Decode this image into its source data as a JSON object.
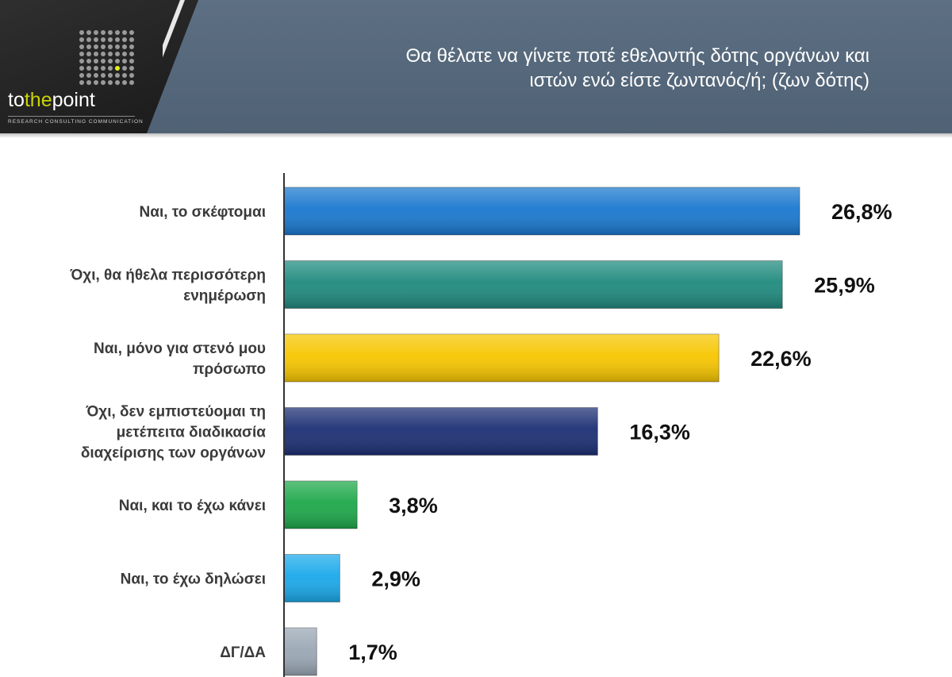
{
  "header": {
    "title_line1": "Θα θέλατε να γίνετε ποτέ εθελοντής δότης οργάνων και",
    "title_line2": "ιστών ενώ είστε ζωντανός/ή; (ζων δότης)",
    "logo": {
      "text_to": "to",
      "text_the": "the",
      "text_point": "point",
      "tagline": "RESEARCH  CONSULTING  COMMUNICATION"
    },
    "band_color": "#56687b"
  },
  "chart_data": {
    "type": "bar",
    "orientation": "horizontal",
    "categories": [
      [
        "Ναι, το σκέφτομαι"
      ],
      [
        "Όχι, θα ήθελα περισσότερη",
        "ενημέρωση"
      ],
      [
        "Ναι, μόνο για στενό μου",
        "πρόσωπο"
      ],
      [
        "Όχι, δεν εμπιστεύομαι τη",
        "μετέπειτα διαδικασία",
        "διαχείρισης των οργάνων"
      ],
      [
        "Ναι, και το έχω κάνει"
      ],
      [
        "Ναι, το έχω δηλώσει"
      ],
      [
        "ΔΓ/ΔΑ"
      ]
    ],
    "values": [
      26.8,
      25.9,
      22.6,
      16.3,
      3.8,
      2.9,
      1.7
    ],
    "value_labels": [
      "26,8%",
      "25,9%",
      "22,6%",
      "16,3%",
      "3,8%",
      "2,9%",
      "1,7%"
    ],
    "colors": [
      "#1a78cf",
      "#1f8a7e",
      "#f7c600",
      "#1c2f74",
      "#1ea84a",
      "#1aa9ea",
      "#9aa7b4"
    ],
    "xlim": [
      0,
      30
    ],
    "grid": false,
    "legend": "none"
  }
}
